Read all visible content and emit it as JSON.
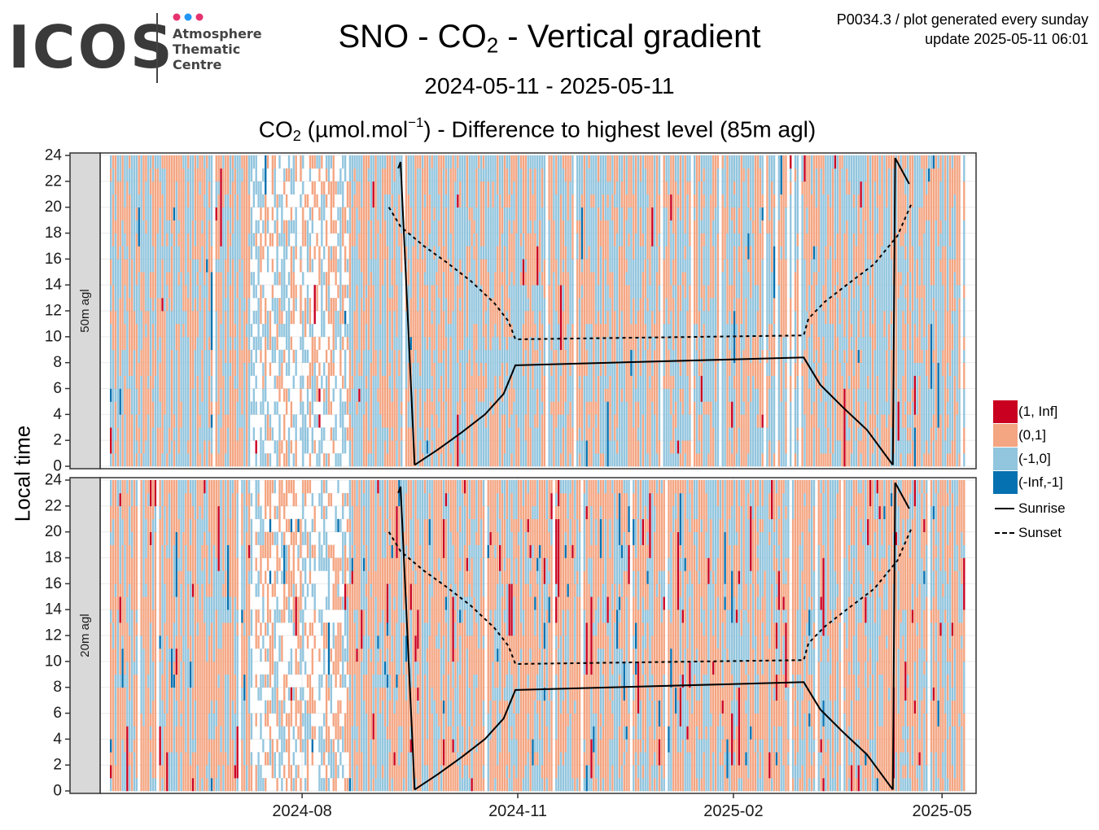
{
  "header": {
    "logo_text": "ICOS",
    "logo_subtitle": [
      "Atmosphere",
      "Thematic",
      "Centre"
    ],
    "title_main": "SNO - CO",
    "title_sub": "2",
    "title_rest": " - Vertical gradient",
    "meta_line1": "P0034.3 / plot generated every sunday",
    "meta_line2": "update  2025-05-11 06:01",
    "date_range": "2024-05-11 - 2025-05-11",
    "subtitle_pre": "CO",
    "subtitle_sub": "2",
    "subtitle_mid": " (µmol.mol",
    "subtitle_sup": "−1",
    "subtitle_post": ") - Difference to highest level (85m agl)"
  },
  "colors": {
    "gt1": "#ca0020",
    "0to1": "#f4a582",
    "m1to0": "#92c5de",
    "ltm1": "#0571b0",
    "strip_bg": "#d9d9d9",
    "grid": "#ebebeb",
    "logo_dots": [
      "#e6336e",
      "#2196f3",
      "#e6336e"
    ]
  },
  "chart_data": {
    "type": "heatmap",
    "ylabel": "Local time",
    "x_range": [
      "2024-05-11",
      "2025-05-11"
    ],
    "x_ticks": [
      "2024-08",
      "2024-11",
      "2025-02",
      "2025-05"
    ],
    "y_range": [
      0,
      24
    ],
    "y_ticks": [
      0,
      2,
      4,
      6,
      8,
      10,
      12,
      14,
      16,
      18,
      20,
      22,
      24
    ],
    "panels": [
      {
        "label": "50m agl",
        "approx_category_shares": {
          "(1, Inf]": 0.01,
          "(0,1]": 0.47,
          "(-1,0]": 0.51,
          "(-Inf,-1]": 0.01
        }
      },
      {
        "label": "20m agl",
        "approx_category_shares": {
          "(1, Inf]": 0.03,
          "(0,1]": 0.55,
          "(-1,0]": 0.4,
          "(-Inf,-1]": 0.02
        }
      }
    ],
    "gap_periods": [
      [
        "2024-07-10",
        "2024-08-20"
      ]
    ],
    "legend": {
      "categories": [
        "(1, Inf]",
        "(0,1]",
        "(-1,0]",
        "(-Inf,-1]"
      ],
      "lines": [
        "Sunrise",
        "Sunset"
      ]
    },
    "sunrise_curve": [
      {
        "x": "2024-09-11",
        "y": 23.0
      },
      {
        "x": "2024-09-12",
        "y": 23.5
      },
      {
        "x": "2024-09-18",
        "y": 0.1
      },
      {
        "x": "2024-09-28",
        "y": 1.3
      },
      {
        "x": "2024-10-08",
        "y": 2.6
      },
      {
        "x": "2024-10-18",
        "y": 4.0
      },
      {
        "x": "2024-10-26",
        "y": 5.6
      },
      {
        "x": "2024-10-31",
        "y": 7.8
      },
      {
        "x": "2025-03-03",
        "y": 8.4
      },
      {
        "x": "2025-03-10",
        "y": 6.3
      },
      {
        "x": "2025-03-20",
        "y": 4.5
      },
      {
        "x": "2025-03-30",
        "y": 2.8
      },
      {
        "x": "2025-04-10",
        "y": 0.1
      },
      {
        "x": "2025-04-11",
        "y": 23.8
      },
      {
        "x": "2025-04-17",
        "y": 21.8
      }
    ],
    "sunset_curve": [
      {
        "x": "2024-09-07",
        "y": 20.0
      },
      {
        "x": "2024-09-12",
        "y": 18.5
      },
      {
        "x": "2024-09-22",
        "y": 17.0
      },
      {
        "x": "2024-10-02",
        "y": 15.7
      },
      {
        "x": "2024-10-12",
        "y": 14.3
      },
      {
        "x": "2024-10-22",
        "y": 12.6
      },
      {
        "x": "2024-10-28",
        "y": 11.2
      },
      {
        "x": "2024-10-31",
        "y": 9.8
      },
      {
        "x": "2025-03-03",
        "y": 10.1
      },
      {
        "x": "2025-03-05",
        "y": 11.4
      },
      {
        "x": "2025-03-12",
        "y": 12.7
      },
      {
        "x": "2025-03-22",
        "y": 14.1
      },
      {
        "x": "2025-04-02",
        "y": 15.6
      },
      {
        "x": "2025-04-12",
        "y": 17.8
      },
      {
        "x": "2025-04-18",
        "y": 20.3
      }
    ]
  }
}
